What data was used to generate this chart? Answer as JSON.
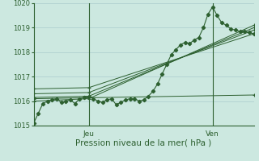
{
  "title": "Pression niveau de la mer( hPa )",
  "bg_color": "#cce8e0",
  "grid_color": "#aacccc",
  "line_color": "#2d6030",
  "marker_color": "#2d6030",
  "ylim": [
    1015,
    1020
  ],
  "yticks": [
    1015,
    1016,
    1017,
    1018,
    1019,
    1020
  ],
  "xlabel_jeu": "Jeu",
  "xlabel_ven": "Ven",
  "xlim": [
    0,
    48
  ],
  "jeu_x": 12,
  "ven_x": 39,
  "series": [
    {
      "x": [
        0,
        1,
        2,
        3,
        4,
        5,
        6,
        7,
        8,
        9,
        10,
        11,
        12,
        13,
        14,
        15,
        16,
        17,
        18,
        19,
        20,
        21,
        22,
        23,
        24,
        25,
        26,
        27,
        28,
        29,
        30,
        31,
        32,
        33,
        34,
        35,
        36,
        37,
        38,
        39,
        40,
        41,
        42,
        43,
        44,
        45,
        46,
        47,
        48
      ],
      "y": [
        1015.1,
        1015.5,
        1015.9,
        1016.0,
        1016.05,
        1016.1,
        1015.95,
        1016.0,
        1016.05,
        1015.9,
        1016.1,
        1016.15,
        1016.2,
        1016.1,
        1016.0,
        1015.95,
        1016.05,
        1016.1,
        1015.85,
        1015.95,
        1016.05,
        1016.1,
        1016.1,
        1016.0,
        1016.05,
        1016.2,
        1016.4,
        1016.7,
        1017.1,
        1017.5,
        1017.9,
        1018.1,
        1018.3,
        1018.4,
        1018.35,
        1018.5,
        1018.6,
        1019.0,
        1019.55,
        1019.85,
        1019.5,
        1019.2,
        1019.1,
        1018.95,
        1018.9,
        1018.85,
        1018.85,
        1018.8,
        1018.75
      ]
    },
    {
      "x": [
        0,
        48
      ],
      "y": [
        1016.1,
        1016.25
      ]
    },
    {
      "x": [
        0,
        12,
        48
      ],
      "y": [
        1016.5,
        1016.55,
        1018.75
      ]
    },
    {
      "x": [
        0,
        12,
        48
      ],
      "y": [
        1016.3,
        1016.35,
        1018.9
      ]
    },
    {
      "x": [
        0,
        12,
        48
      ],
      "y": [
        1016.15,
        1016.2,
        1019.0
      ]
    },
    {
      "x": [
        0,
        12,
        48
      ],
      "y": [
        1016.0,
        1016.1,
        1019.1
      ]
    }
  ]
}
